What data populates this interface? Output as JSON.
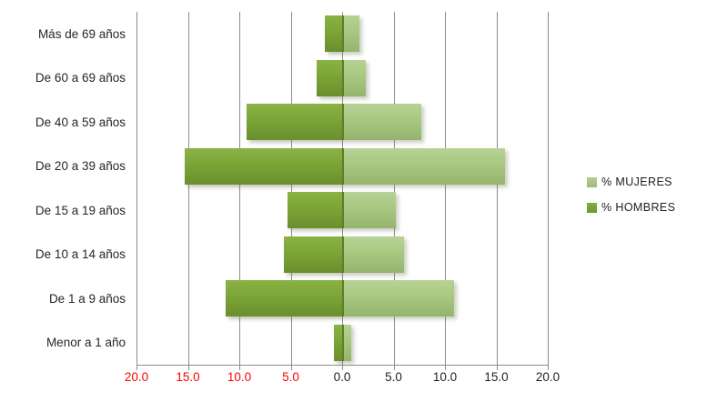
{
  "chart_data": {
    "type": "bar",
    "variant": "population-pyramid-horizontal",
    "title": "",
    "categories": [
      "Más de 69 años",
      "De 60 a 69 años",
      "De 40 a 59 años",
      "De 20 a 39 años",
      "De 15 a 19 años",
      "De 10 a 14 años",
      "De 1 a 9 años",
      "Menor a 1 año"
    ],
    "series": [
      {
        "name": "% MUJERES",
        "side": "right",
        "color": "#A9C982",
        "values": [
          1.5,
          2.1,
          7.5,
          15.7,
          5.0,
          5.8,
          10.7,
          0.7
        ]
      },
      {
        "name": "% HOMBRES",
        "side": "left",
        "color": "#76A234",
        "values": [
          1.7,
          2.5,
          9.3,
          15.3,
          5.3,
          5.7,
          11.3,
          0.8
        ]
      }
    ],
    "x_axis": {
      "labels": [
        "20.0",
        "15.0",
        "10.0",
        "5.0",
        "0.0",
        "5.0",
        "10.0",
        "15.0",
        "20.0"
      ],
      "negative_label_count": 4,
      "negative_label_color": "#FF0000",
      "positive_label_color": "#1F1F1F",
      "min": -20,
      "max": 20,
      "step": 5
    },
    "grid": true,
    "gridline_color": "#8C8C8C",
    "legend_position": "right",
    "legend": [
      "% MUJERES",
      "% HOMBRES"
    ]
  }
}
